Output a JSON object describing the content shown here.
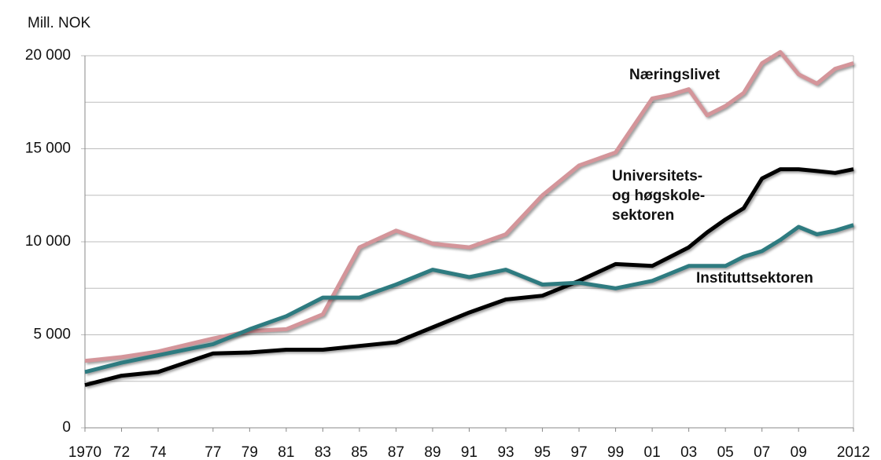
{
  "chart_data": {
    "type": "line",
    "y_label": "Mill. NOK",
    "x": [
      1970,
      1972,
      1974,
      1977,
      1979,
      1981,
      1983,
      1985,
      1987,
      1989,
      1991,
      1993,
      1995,
      1997,
      1999,
      2001,
      2002,
      2003,
      2004,
      2005,
      2006,
      2007,
      2008,
      2009,
      2010,
      2011,
      2012
    ],
    "series": [
      {
        "name": "Næringslivet",
        "color": "#d4959a",
        "values": [
          3600,
          3800,
          4100,
          4800,
          5200,
          5300,
          6100,
          9700,
          10600,
          9900,
          9700,
          10400,
          12500,
          14100,
          14800,
          17700,
          17900,
          18200,
          16800,
          17300,
          18000,
          19600,
          20200,
          19000,
          18500,
          19300,
          19600
        ]
      },
      {
        "name": "Universitets- og høgskole- sektoren",
        "color": "#000000",
        "values": [
          2300,
          2800,
          3000,
          4000,
          4050,
          4200,
          4200,
          4400,
          4600,
          5400,
          6200,
          6900,
          7100,
          7900,
          8800,
          8700,
          9200,
          9700,
          10500,
          11200,
          11800,
          13400,
          13900,
          13900,
          13800,
          13700,
          13900
        ]
      },
      {
        "name": "Instituttsektoren",
        "color": "#2e7b80",
        "values": [
          3000,
          3500,
          3900,
          4500,
          5300,
          6000,
          7000,
          7000,
          7700,
          8500,
          8100,
          8500,
          7700,
          7800,
          7500,
          7900,
          8300,
          8700,
          8700,
          8700,
          9200,
          9500,
          10100,
          10800,
          10400,
          10600,
          10900
        ]
      }
    ],
    "xlim": [
      1970,
      2012
    ],
    "xticks": [
      {
        "value": 1970,
        "label": "1970"
      },
      {
        "value": 1972,
        "label": "72"
      },
      {
        "value": 1974,
        "label": "74"
      },
      {
        "value": 1977,
        "label": "77"
      },
      {
        "value": 1979,
        "label": "79"
      },
      {
        "value": 1981,
        "label": "81"
      },
      {
        "value": 1983,
        "label": "83"
      },
      {
        "value": 1985,
        "label": "85"
      },
      {
        "value": 1987,
        "label": "87"
      },
      {
        "value": 1989,
        "label": "89"
      },
      {
        "value": 1991,
        "label": "91"
      },
      {
        "value": 1993,
        "label": "93"
      },
      {
        "value": 1995,
        "label": "95"
      },
      {
        "value": 1997,
        "label": "97"
      },
      {
        "value": 1999,
        "label": "99"
      },
      {
        "value": 2001,
        "label": "01"
      },
      {
        "value": 2003,
        "label": "03"
      },
      {
        "value": 2005,
        "label": "05"
      },
      {
        "value": 2007,
        "label": "07"
      },
      {
        "value": 2009,
        "label": "09"
      },
      {
        "value": 2012,
        "label": "2012"
      }
    ],
    "ylim": [
      0,
      20000
    ],
    "yticks": [
      0,
      {
        "value": 5000,
        "label": "5 000"
      },
      {
        "value": 10000,
        "label": "10 000"
      },
      {
        "value": 15000,
        "label": "15 000"
      },
      {
        "value": 20000,
        "label": "20 000"
      }
    ],
    "minor_grid": [
      2500,
      7500,
      12500,
      17500
    ],
    "grid": true
  }
}
